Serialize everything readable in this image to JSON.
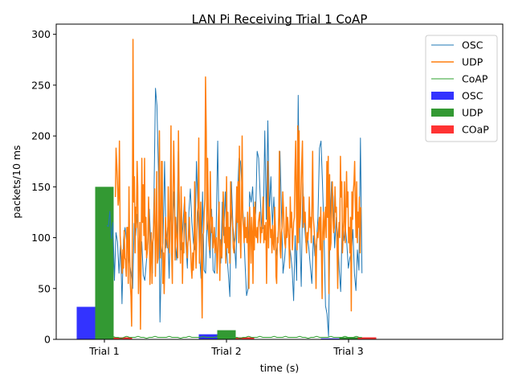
{
  "chart_data": {
    "type": "bar+line",
    "title": "LAN Pi Receiving Trial 1 CoAP",
    "xlabel": "time (s)",
    "ylabel": "packets/10 ms",
    "ylim": [
      0,
      310
    ],
    "yticks": [
      0,
      50,
      100,
      150,
      200,
      250,
      300
    ],
    "categories": [
      "Trial 1",
      "Trial 2",
      "Trial 3"
    ],
    "bar_series": [
      {
        "name": "OSC",
        "color": "#3333ff",
        "values": [
          32,
          5,
          1
        ]
      },
      {
        "name": "UDP",
        "color": "#339933",
        "values": [
          150,
          9,
          2
        ]
      },
      {
        "name": "COaP",
        "color": "#ff3333",
        "values": [
          2,
          2,
          2
        ]
      }
    ],
    "line_series": [
      {
        "name": "OSC",
        "color": "#1f77b4",
        "x_range": [
          1.02,
          3.11
        ],
        "values": [
          112,
          111,
          126,
          99,
          115,
          58,
          105,
          96,
          65,
          95,
          35,
          98,
          110,
          97,
          88,
          75,
          64,
          50,
          114,
          102,
          123,
          85,
          72,
          96,
          63,
          58,
          76,
          93,
          128,
          89,
          65,
          140,
          247,
          230,
          165,
          17,
          85,
          95,
          175,
          90,
          110,
          60,
          130,
          100,
          145,
          95,
          78,
          185,
          120,
          88,
          110,
          135,
          95,
          70,
          125,
          148,
          115,
          95,
          88,
          175,
          128,
          85,
          60,
          145,
          68,
          65,
          120,
          98,
          80,
          128,
          68,
          65,
          110,
          195,
          88,
          75,
          135,
          102,
          145,
          85,
          65,
          42,
          155,
          112,
          95,
          70,
          140,
          178,
          175,
          150,
          115,
          75,
          43,
          50,
          145,
          135,
          150,
          110,
          125,
          185,
          178,
          140,
          108,
          110,
          205,
          118,
          215,
          125,
          160,
          112,
          140,
          95,
          82,
          110,
          185,
          125,
          65,
          78,
          100,
          115,
          95,
          85,
          70,
          38,
          102,
          58,
          240,
          105,
          52,
          155,
          115,
          95,
          102,
          90,
          72,
          55,
          102,
          82,
          95,
          120,
          188,
          195,
          152,
          105,
          33,
          25,
          3,
          115,
          155,
          140,
          90,
          120,
          102,
          68,
          47,
          115,
          97,
          111,
          95,
          70,
          80,
          85,
          108,
          65,
          48,
          88,
          68,
          198,
          65
        ]
      },
      {
        "name": "UDP",
        "color": "#ff7f0e",
        "x_range": [
          1.09,
          3.1
        ],
        "values": [
          140,
          188,
          172,
          155,
          132,
          140,
          195,
          102,
          92,
          80,
          65,
          88,
          70,
          107,
          80,
          78,
          62,
          110,
          110,
          55,
          150,
          85,
          55,
          42,
          13,
          102,
          295,
          135,
          160,
          85,
          130,
          110,
          175,
          150,
          45,
          78,
          115,
          10,
          90,
          178,
          115,
          152,
          102,
          178,
          88,
          120,
          80,
          85,
          100,
          140,
          110,
          54,
          80,
          105,
          55,
          95,
          100,
          125,
          148,
          62,
          98,
          165,
          75,
          80,
          118,
          205,
          90,
          80,
          175,
          175,
          55,
          85,
          45,
          78,
          120,
          100,
          98,
          90,
          150,
          110,
          85,
          130,
          210,
          85,
          55,
          142,
          195,
          160,
          78,
          120,
          105,
          95,
          80,
          205,
          145,
          100,
          75,
          150,
          110,
          55,
          95,
          85,
          140,
          115,
          125,
          90,
          80,
          95,
          98,
          120,
          100,
          88,
          70,
          60,
          85,
          68,
          90,
          155,
          95,
          70,
          100,
          125,
          130,
          198,
          75,
          110,
          135,
          65,
          21,
          103,
          105,
          125,
          138,
          258,
          205,
          108,
          178,
          130,
          95,
          88,
          165,
          125,
          105,
          120,
          90,
          98,
          110,
          85,
          96,
          100,
          65,
          80,
          120,
          135,
          58,
          98,
          85,
          80,
          105,
          145,
          120,
          95,
          110,
          75,
          160,
          90,
          125,
          85,
          110,
          75,
          155,
          130,
          120,
          110,
          90,
          85,
          95,
          100,
          120,
          150,
          115,
          155,
          95,
          190,
          105,
          80,
          130,
          200,
          120,
          110,
          95,
          120,
          100,
          110,
          95,
          125,
          90,
          50,
          130,
          110,
          75,
          120,
          105,
          55,
          130,
          88,
          135,
          102,
          100,
          110,
          95,
          115,
          120,
          125,
          95,
          110,
          105,
          120,
          140,
          95,
          112,
          98,
          115,
          55,
          100,
          175,
          90,
          130,
          120,
          100,
          108,
          85,
          112,
          95,
          88,
          130,
          110,
          62,
          55,
          100,
          95,
          120,
          185,
          88,
          80,
          105,
          110,
          145,
          128,
          105,
          95,
          90,
          130,
          100,
          120,
          110,
          98,
          70,
          140,
          110,
          125,
          88,
          100,
          115,
          120,
          165,
          195,
          135,
          88,
          210,
          95,
          205,
          110,
          120,
          148,
          175,
          195,
          110,
          140,
          115,
          125,
          100,
          85,
          105,
          98,
          108,
          140,
          110,
          120,
          95,
          130,
          185,
          120,
          110,
          98,
          85,
          50,
          95,
          105,
          100,
          115,
          120,
          88,
          130,
          90,
          40,
          105,
          125,
          98,
          115,
          130,
          100,
          175,
          120,
          180,
          45,
          162,
          88,
          95,
          135,
          155,
          120,
          105,
          110,
          150,
          125,
          130,
          90,
          50,
          100,
          115,
          100,
          180,
          140,
          155,
          85,
          102,
          118,
          155,
          95,
          122,
          165,
          130,
          145,
          95,
          110,
          85,
          120,
          28,
          145,
          118,
          145,
          155,
          175,
          135,
          100,
          155,
          95,
          125,
          110,
          140,
          85,
          130
        ]
      },
      {
        "name": "CoAP",
        "color": "#2ca02c",
        "x_range": [
          1.02,
          3.11
        ],
        "values": [
          2,
          2,
          3,
          2,
          2,
          1,
          2,
          3,
          2,
          2,
          2,
          3,
          2,
          2,
          1,
          2,
          2,
          3,
          2,
          2,
          2,
          2,
          3,
          2,
          2,
          2,
          1,
          2,
          2,
          3,
          2,
          2,
          2,
          2,
          3,
          2,
          2,
          2,
          2,
          3,
          2,
          2,
          2,
          2,
          3,
          2,
          2,
          1,
          2,
          2,
          3,
          2,
          2,
          2,
          3,
          2,
          2,
          2,
          2,
          3,
          2,
          2,
          2,
          3,
          2,
          2,
          2,
          2,
          3,
          2,
          2,
          1,
          2,
          2,
          3,
          2,
          2,
          2,
          2,
          3,
          2,
          2,
          2,
          2,
          3,
          2,
          2,
          2,
          3,
          2,
          2
        ]
      }
    ],
    "legend_position": "upper right",
    "legend_entries": [
      "OSC",
      "UDP",
      "CoAP",
      "OSC",
      "UDP",
      "COaP"
    ]
  }
}
